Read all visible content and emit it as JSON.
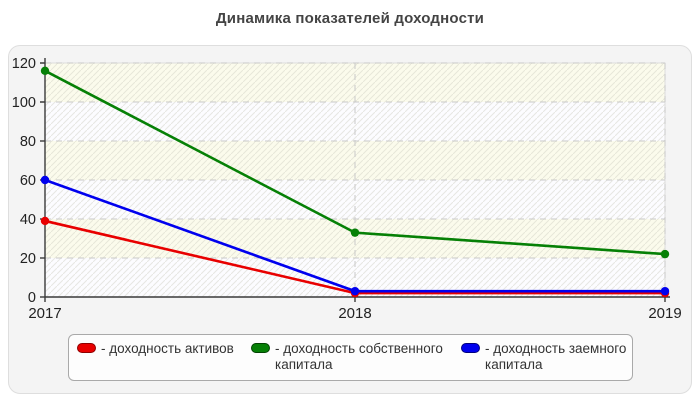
{
  "page": {
    "title": "Динамика показателей доходности"
  },
  "chart_data": {
    "type": "line",
    "title": "Динамика показателей доходности",
    "categories": [
      "2017",
      "2018",
      "2019"
    ],
    "series": [
      {
        "name": "доходность активов",
        "color": "#e80000",
        "values": [
          39,
          2,
          2
        ]
      },
      {
        "name": "доходность собственного капитала",
        "color": "#068006",
        "values": [
          116,
          33,
          22
        ]
      },
      {
        "name": "доходность заемного капитала",
        "color": "#0000ee",
        "values": [
          60,
          3,
          3
        ]
      }
    ],
    "ylim": [
      0,
      120
    ],
    "yticks": [
      0,
      20,
      40,
      60,
      80,
      100,
      120
    ],
    "grid": "dashed",
    "legend_position": "bottom",
    "plot_band_colors": [
      "#fbfbec",
      "#fcfcff"
    ]
  },
  "legend": {
    "items": [
      {
        "label": "- доходность активов",
        "color": "#e80000",
        "border": "#8f0000"
      },
      {
        "label": "- доходность собственного капитала",
        "color": "#068006",
        "border": "#024402"
      },
      {
        "label": "- доходность заемного капитала",
        "color": "#0000ee",
        "border": "#00007f"
      }
    ]
  },
  "colors": {
    "panel_bg": "#f4f4f4",
    "axis": "#3a3a3a",
    "gridline": "#c9c9c9",
    "tick_label": "#222222",
    "title": "#444444"
  }
}
